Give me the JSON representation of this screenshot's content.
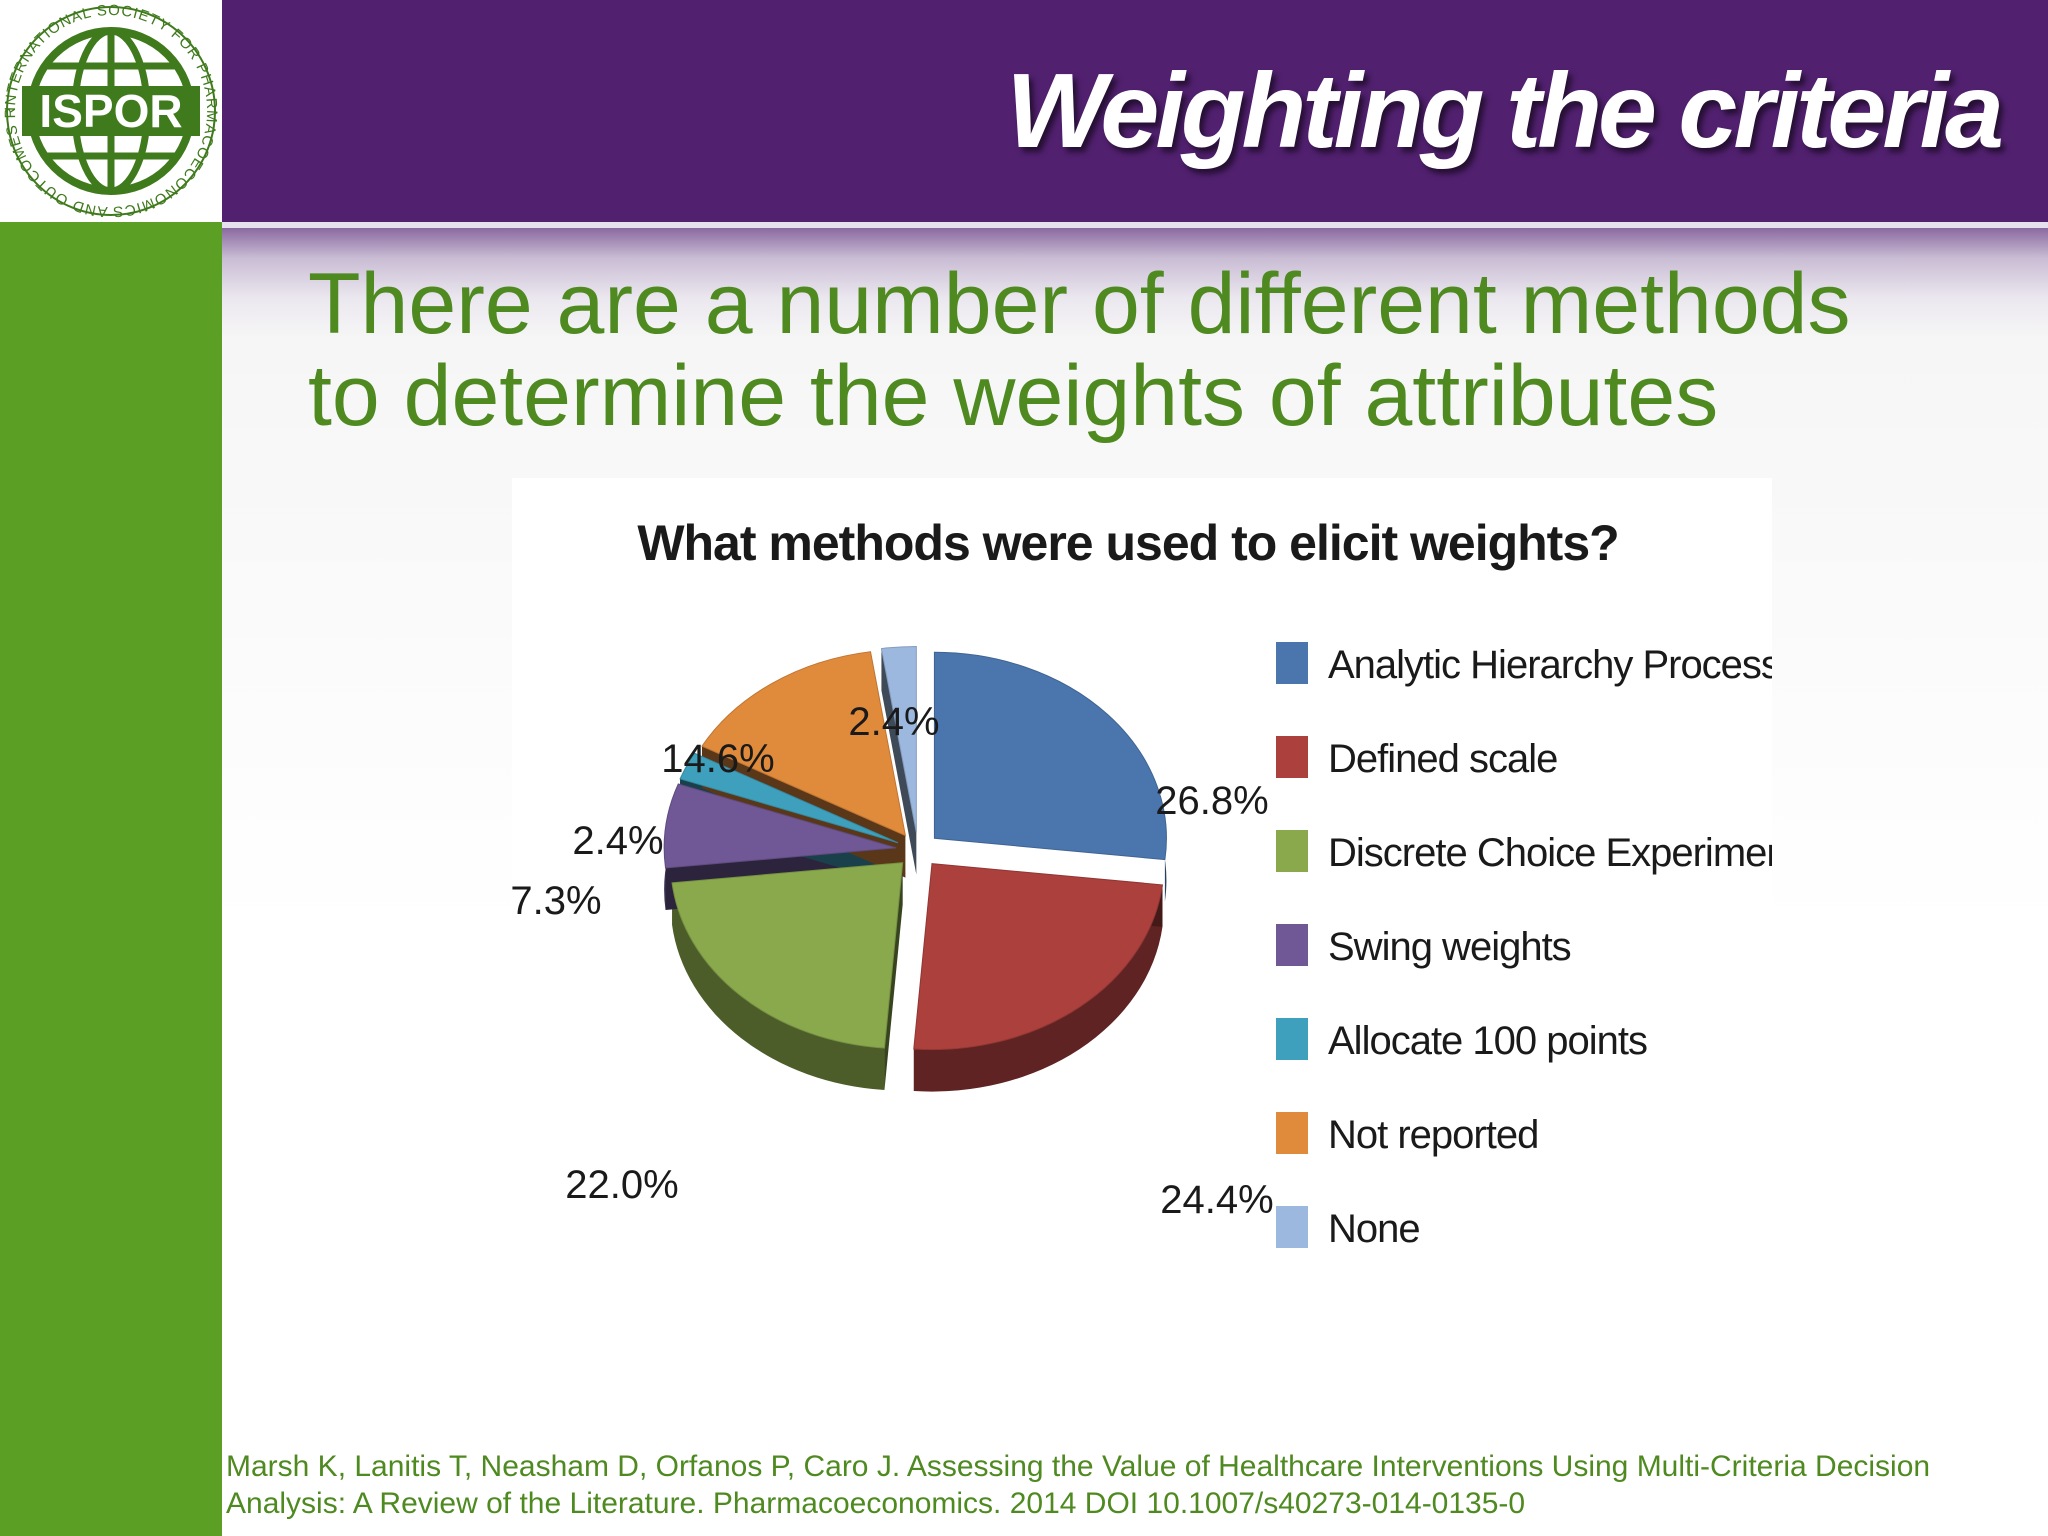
{
  "header": {
    "title": "Weighting the criteria",
    "logo": {
      "text": "ISPOR",
      "ring_text": "INTERNATIONAL SOCIETY FOR PHARMACOECONOMICS AND OUTCOMES RESEARCH"
    }
  },
  "headline": {
    "line1": "There are a number of different methods",
    "line2": "to determine the weights of attributes"
  },
  "citation": {
    "line1": "Marsh K, Lanitis T, Neasham D, Orfanos P, Caro J. Assessing the Value of Healthcare Interventions Using Multi-Criteria Decision",
    "line2": "Analysis: A Review of the Literature. Pharmacoeconomics. 2014 DOI 10.1007/s40273-014-0135-0"
  },
  "colors": {
    "header_purple": "#51206f",
    "sidebar_green": "#5b9f24",
    "text_green": "#4f8a21"
  },
  "chart_data": {
    "type": "pie",
    "title": "What methods were used to elicit weights?",
    "style": "3d-exploded",
    "legend_position": "right",
    "slices": [
      {
        "name": "Analytic Hierarchy Process",
        "value": 26.8,
        "label": "26.8%",
        "color": "#4a76ad"
      },
      {
        "name": "Defined scale",
        "value": 24.4,
        "label": "24.4%",
        "color": "#ab403d"
      },
      {
        "name": "Discrete Choice Experiment",
        "value": 22.0,
        "label": "22.0%",
        "color": "#8aa94d"
      },
      {
        "name": "Swing weights",
        "value": 7.3,
        "label": "7.3%",
        "color": "#6f5895"
      },
      {
        "name": "Allocate 100 points",
        "value": 2.4,
        "label": "2.4%",
        "color": "#3ea0bc"
      },
      {
        "name": "Not reported",
        "value": 14.6,
        "label": "14.6%",
        "color": "#e08a3c"
      },
      {
        "name": "None",
        "value": 2.4,
        "label": "2.4%",
        "color": "#9db8df"
      }
    ]
  }
}
